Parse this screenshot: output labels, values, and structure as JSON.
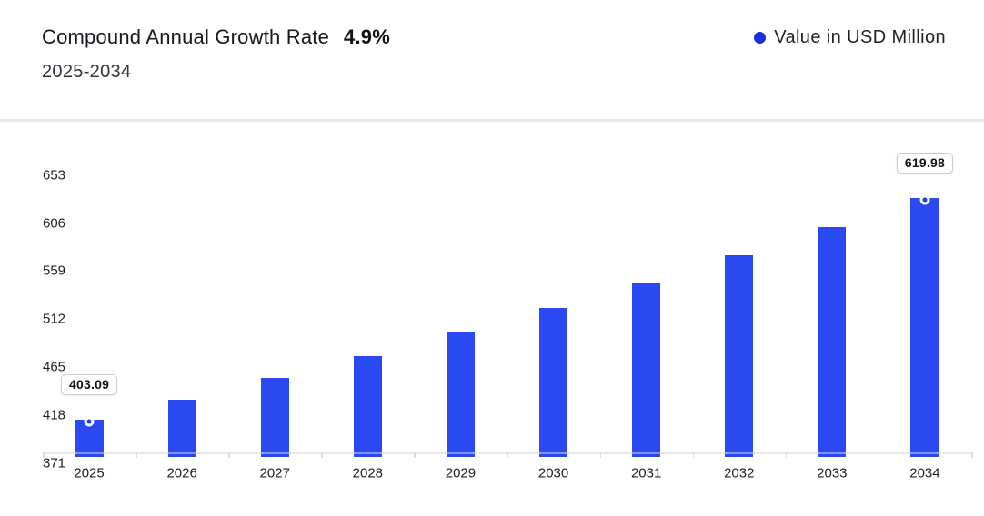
{
  "header": {
    "title": "Compound Annual Growth Rate",
    "cagr_value": "4.9%",
    "subtitle": "2025-2034",
    "legend": {
      "label": "Value in USD Million",
      "dot_color": "#1b2fd9"
    }
  },
  "chart_data": {
    "type": "bar",
    "title": "Compound Annual Growth Rate 4.9% 2025-2034",
    "categories": [
      "2025",
      "2026",
      "2027",
      "2028",
      "2029",
      "2030",
      "2031",
      "2032",
      "2033",
      "2034"
    ],
    "series": [
      {
        "name": "Value in USD Million",
        "values": [
          403.09,
          422.84,
          443.56,
          465.29,
          488.09,
          512.01,
          537.1,
          563.42,
          591.02,
          619.98
        ]
      }
    ],
    "yticks": [
      371,
      418,
      465,
      512,
      559,
      606,
      653
    ],
    "ylim": [
      371,
      682
    ],
    "grid": false,
    "legend_position": "top-right",
    "xlabel": "",
    "ylabel": "",
    "bar_color": "#2b49f2",
    "bar_stripe_color": "#8194f8",
    "marker_color": "#2038e8",
    "annotations": [
      {
        "index": 0,
        "label": "403.09"
      },
      {
        "index": 9,
        "label": "619.98"
      }
    ],
    "marker_indices": [
      0,
      9
    ]
  }
}
